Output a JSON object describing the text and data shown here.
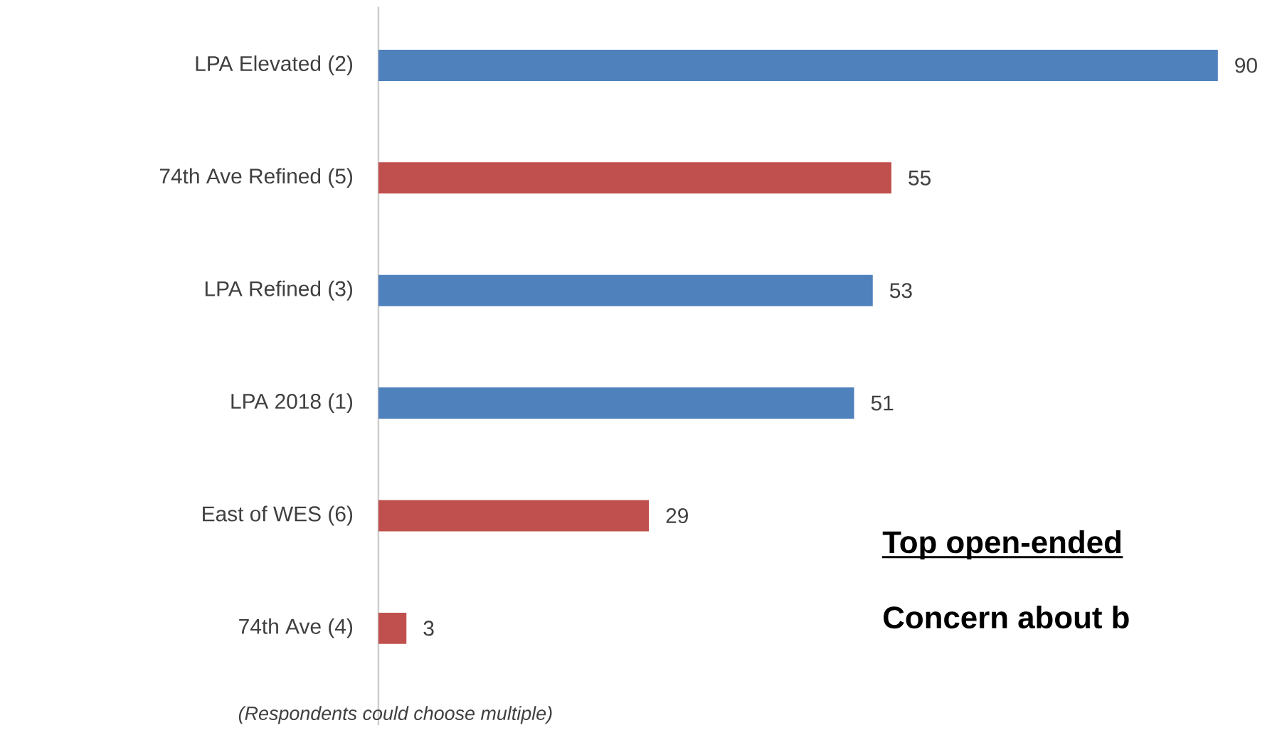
{
  "chart_data": {
    "type": "bar",
    "orientation": "horizontal",
    "categories": [
      "LPA Elevated (2)",
      "74th Ave Refined (5)",
      "LPA Refined (3)",
      "LPA 2018 (1)",
      "East of WES (6)",
      "74th Ave (4)"
    ],
    "values": [
      90,
      55,
      53,
      51,
      29,
      3
    ],
    "colors": [
      "#4f81bd",
      "#c0504d",
      "#4f81bd",
      "#4f81bd",
      "#c0504d",
      "#c0504d"
    ],
    "data_labels": true,
    "annotations": [
      "(Respondents could choose multiple)",
      "Top open-ended",
      "Concern about b"
    ]
  }
}
